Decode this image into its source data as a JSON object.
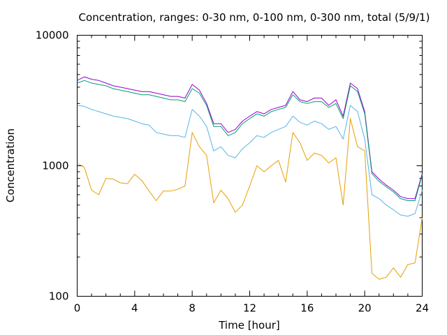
{
  "chart_data": {
    "type": "line",
    "title": "Concentration, ranges: 0-30 nm, 0-100 nm, 0-300 nm, total (5/9/1)",
    "xlabel": "Time [hour]",
    "ylabel": "Concentration",
    "xlim": [
      0,
      24
    ],
    "ylim": [
      100,
      10000
    ],
    "yscale": "log",
    "grid": false,
    "legend": "none",
    "x_ticks": [
      {
        "value": 0,
        "label": "0"
      },
      {
        "value": 4,
        "label": "4"
      },
      {
        "value": 8,
        "label": "8"
      },
      {
        "value": 12,
        "label": "12"
      },
      {
        "value": 16,
        "label": "16"
      },
      {
        "value": 20,
        "label": "20"
      },
      {
        "value": 24,
        "label": "24"
      }
    ],
    "y_ticks": [
      {
        "value": 100,
        "label": "100"
      },
      {
        "value": 1000,
        "label": "1000"
      },
      {
        "value": 10000,
        "label": "10000"
      }
    ],
    "x": [
      0,
      0.5,
      1,
      1.5,
      2,
      2.5,
      3,
      3.5,
      4,
      4.5,
      5,
      5.5,
      6,
      6.5,
      7,
      7.5,
      8,
      8.5,
      9,
      9.5,
      10,
      10.5,
      11,
      11.5,
      12,
      12.5,
      13,
      13.5,
      14,
      14.5,
      15,
      15.5,
      16,
      16.5,
      17,
      17.5,
      18,
      18.5,
      19,
      19.5,
      20,
      20.5,
      21,
      21.5,
      22,
      22.5,
      23,
      23.5,
      24
    ],
    "series": [
      {
        "color": "#9400d3",
        "values": [
          4500,
          4800,
          4600,
          4500,
          4300,
          4100,
          4000,
          3900,
          3800,
          3700,
          3700,
          3600,
          3500,
          3400,
          3400,
          3300,
          4200,
          3800,
          3000,
          2100,
          2100,
          1800,
          1900,
          2200,
          2400,
          2600,
          2500,
          2700,
          2800,
          2900,
          3700,
          3200,
          3100,
          3300,
          3300,
          2900,
          3200,
          2400,
          4300,
          3900,
          2600,
          900,
          790,
          710,
          650,
          580,
          560,
          560,
          870
        ]
      },
      {
        "color": "#009e73",
        "values": [
          4300,
          4500,
          4300,
          4200,
          4100,
          3900,
          3800,
          3700,
          3600,
          3500,
          3500,
          3400,
          3300,
          3200,
          3200,
          3100,
          3900,
          3600,
          2900,
          2000,
          2000,
          1700,
          1800,
          2100,
          2300,
          2500,
          2400,
          2600,
          2700,
          2800,
          3500,
          3100,
          3000,
          3100,
          3100,
          2800,
          3000,
          2300,
          4100,
          3700,
          2500,
          870,
          760,
          690,
          630,
          560,
          540,
          540,
          850
        ]
      },
      {
        "color": "#56b4e9",
        "values": [
          2900,
          2850,
          2700,
          2600,
          2500,
          2400,
          2350,
          2300,
          2200,
          2100,
          2050,
          1800,
          1750,
          1700,
          1700,
          1650,
          2700,
          2400,
          2000,
          1300,
          1400,
          1200,
          1150,
          1350,
          1500,
          1700,
          1650,
          1800,
          1900,
          2000,
          2400,
          2150,
          2050,
          2200,
          2100,
          1900,
          2000,
          1600,
          2900,
          2600,
          1600,
          600,
          560,
          500,
          460,
          420,
          410,
          430,
          650
        ]
      },
      {
        "color": "#e69f00",
        "values": [
          1050,
          970,
          650,
          600,
          800,
          790,
          740,
          730,
          860,
          770,
          640,
          540,
          640,
          640,
          660,
          700,
          1800,
          1400,
          1200,
          520,
          650,
          560,
          440,
          500,
          700,
          1000,
          900,
          1000,
          1100,
          750,
          1800,
          1500,
          1100,
          1250,
          1200,
          1050,
          1150,
          500,
          2300,
          1400,
          1300,
          150,
          135,
          140,
          165,
          140,
          175,
          180,
          400
        ]
      }
    ]
  }
}
